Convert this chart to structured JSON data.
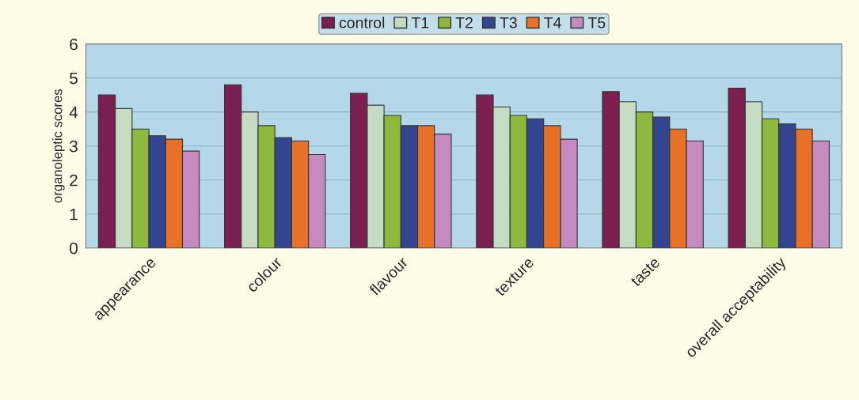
{
  "chart_data": {
    "type": "bar",
    "ylabel": "organoleptic scores",
    "categories": [
      "appearance",
      "colour",
      "flavour",
      "texture",
      "taste",
      "overall acceptability"
    ],
    "series": [
      {
        "name": "control",
        "color": "#7a1f4f",
        "values": [
          4.5,
          4.8,
          4.55,
          4.5,
          4.6,
          4.7
        ]
      },
      {
        "name": "T1",
        "color": "#c5dcc4",
        "values": [
          4.1,
          4.0,
          4.2,
          4.15,
          4.3,
          4.3
        ]
      },
      {
        "name": "T2",
        "color": "#8fb83e",
        "values": [
          3.5,
          3.6,
          3.9,
          3.9,
          4.0,
          3.8
        ]
      },
      {
        "name": "T3",
        "color": "#34458f",
        "values": [
          3.3,
          3.25,
          3.6,
          3.8,
          3.85,
          3.65
        ]
      },
      {
        "name": "T4",
        "color": "#e8712a",
        "values": [
          3.2,
          3.15,
          3.6,
          3.6,
          3.5,
          3.5
        ]
      },
      {
        "name": "T5",
        "color": "#c58ac0",
        "values": [
          2.85,
          2.75,
          3.35,
          3.2,
          3.15,
          3.15
        ]
      }
    ],
    "ylim": [
      0,
      6
    ],
    "yticks": [
      0,
      1,
      2,
      3,
      4,
      5,
      6
    ],
    "grid": "y",
    "legend": "top"
  }
}
